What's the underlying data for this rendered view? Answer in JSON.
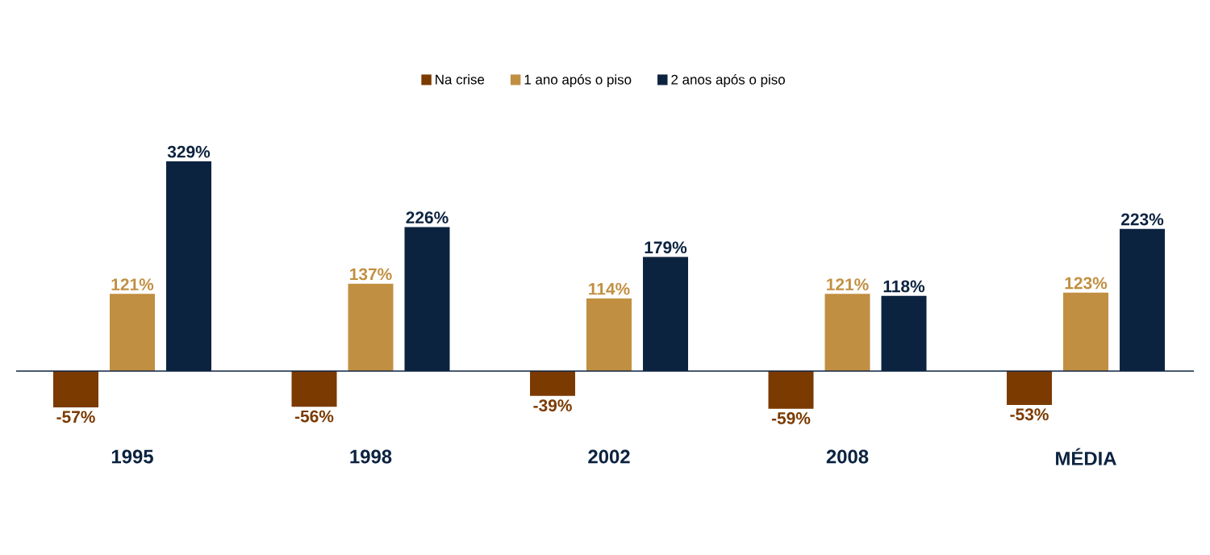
{
  "chart_data": {
    "type": "bar",
    "categories": [
      "1995",
      "1998",
      "2002",
      "2008",
      "MÉDIA"
    ],
    "series": [
      {
        "name": "Na crise",
        "color": "#7b3a00",
        "values": [
          -57,
          -56,
          -39,
          -59,
          -53
        ],
        "value_labels": [
          "-57%",
          "-56%",
          "-39%",
          "-59%",
          "-53%"
        ]
      },
      {
        "name": "1 ano após o piso",
        "color": "#c18f41",
        "values": [
          121,
          137,
          114,
          121,
          123
        ],
        "value_labels": [
          "121%",
          "137%",
          "114%",
          "121%",
          "123%"
        ]
      },
      {
        "name": "2 anos após o piso",
        "color": "#0c2340",
        "values": [
          329,
          226,
          179,
          118,
          223
        ],
        "value_labels": [
          "329%",
          "226%",
          "179%",
          "118%",
          "223%"
        ]
      }
    ],
    "legend": "top"
  }
}
